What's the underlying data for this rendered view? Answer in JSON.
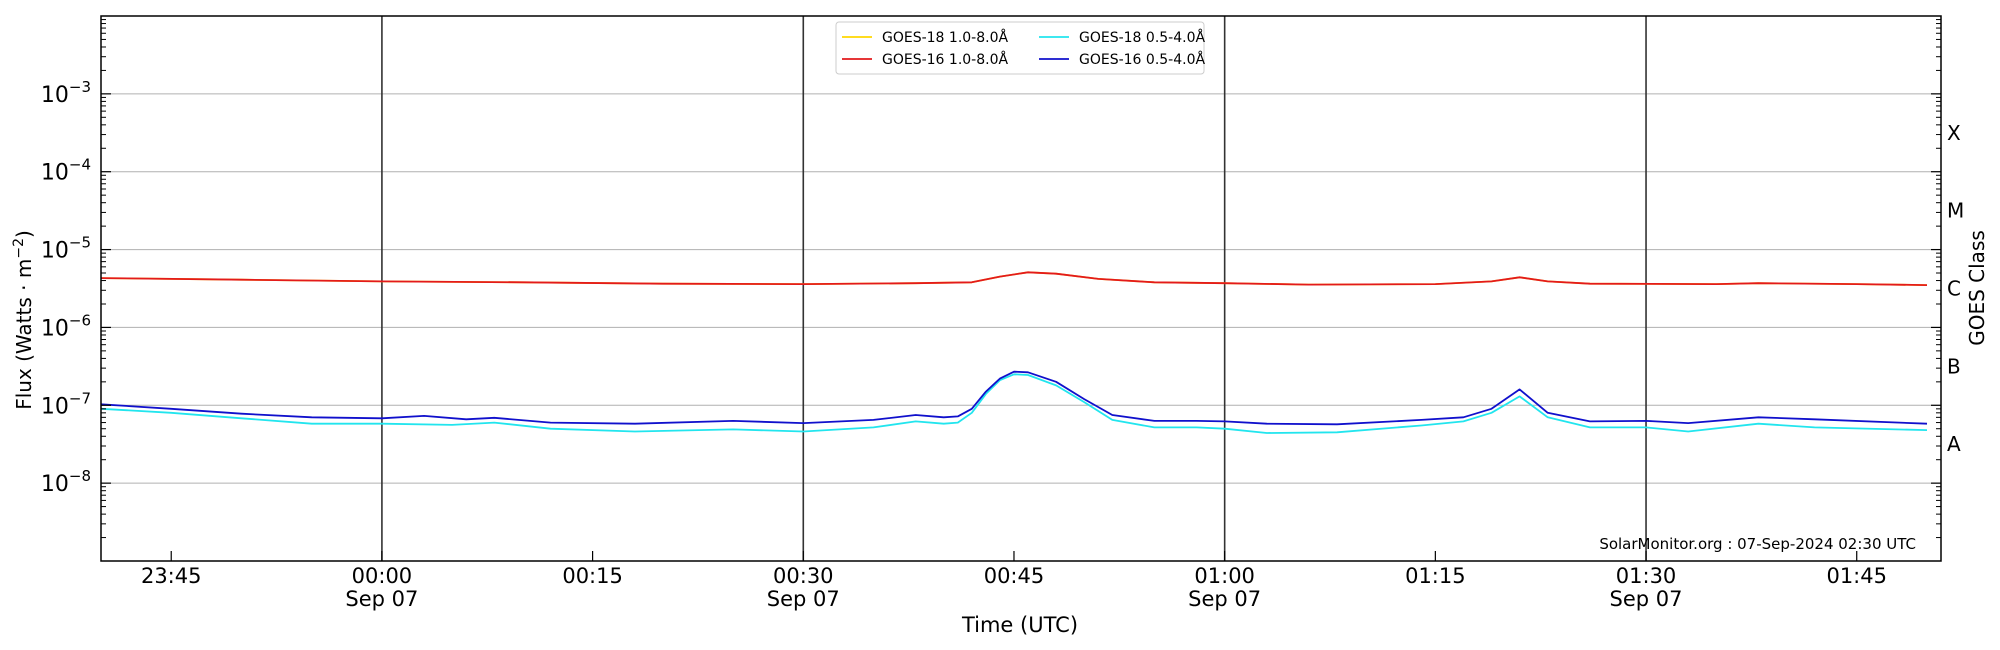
{
  "chart_data": {
    "type": "line",
    "xlabel": "Time (UTC)",
    "ylabel": "Flux (Watts · m",
    "ylabel_sup": "−2",
    "ylabel_close": ")",
    "y2label": "GOES Class",
    "yscale": "log",
    "ylim": [
      1e-09,
      0.01
    ],
    "xlim": [
      "2024-09-06T23:40",
      "2024-09-07T01:51"
    ],
    "grid": "horizontal",
    "legend_placement": "top-center",
    "annotation": "SolarMonitor.org : 07-Sep-2024 02:30 UTC",
    "y_ticks": [
      {
        "value": 1e-08,
        "label": "10",
        "exp": "−8"
      },
      {
        "value": 1e-07,
        "label": "10",
        "exp": "−7"
      },
      {
        "value": 1e-06,
        "label": "10",
        "exp": "−6"
      },
      {
        "value": 1e-05,
        "label": "10",
        "exp": "−5"
      },
      {
        "value": 0.0001,
        "label": "10",
        "exp": "−4"
      },
      {
        "value": 0.001,
        "label": "10",
        "exp": "−3"
      }
    ],
    "x_ticks": [
      {
        "time": "2024-09-06T23:45",
        "label": "23:45",
        "date": ""
      },
      {
        "time": "2024-09-07T00:00",
        "label": "00:00",
        "date": "Sep 07"
      },
      {
        "time": "2024-09-07T00:15",
        "label": "00:15",
        "date": ""
      },
      {
        "time": "2024-09-07T00:30",
        "label": "00:30",
        "date": "Sep 07"
      },
      {
        "time": "2024-09-07T00:45",
        "label": "00:45",
        "date": ""
      },
      {
        "time": "2024-09-07T01:00",
        "label": "01:00",
        "date": "Sep 07"
      },
      {
        "time": "2024-09-07T01:15",
        "label": "01:15",
        "date": ""
      },
      {
        "time": "2024-09-07T01:30",
        "label": "01:30",
        "date": "Sep 07"
      },
      {
        "time": "2024-09-07T01:45",
        "label": "01:45",
        "date": ""
      }
    ],
    "vlines": [
      "2024-09-07T00:00",
      "2024-09-07T00:30",
      "2024-09-07T01:00",
      "2024-09-07T01:30"
    ],
    "goes_classes": [
      {
        "label": "A",
        "value": 3.16e-08
      },
      {
        "label": "B",
        "value": 3.16e-07
      },
      {
        "label": "C",
        "value": 3.16e-06
      },
      {
        "label": "M",
        "value": 3.16e-05
      },
      {
        "label": "X",
        "value": 0.000316
      }
    ],
    "series": [
      {
        "name": "GOES-18 1.0-8.0Å",
        "color": "#ffd700",
        "points": [
          [
            "2024-09-06T23:40",
            4.3e-06
          ],
          [
            "2024-09-06T23:50",
            4.1e-06
          ],
          [
            "2024-09-07T00:00",
            3.9e-06
          ],
          [
            "2024-09-07T00:10",
            3.8e-06
          ],
          [
            "2024-09-07T00:20",
            3.65e-06
          ],
          [
            "2024-09-07T00:30",
            3.6e-06
          ],
          [
            "2024-09-07T00:38",
            3.7e-06
          ],
          [
            "2024-09-07T00:42",
            3.8e-06
          ],
          [
            "2024-09-07T00:44",
            4.5e-06
          ],
          [
            "2024-09-07T00:46",
            5.1e-06
          ],
          [
            "2024-09-07T00:48",
            4.9e-06
          ],
          [
            "2024-09-07T00:51",
            4.2e-06
          ],
          [
            "2024-09-07T00:55",
            3.8e-06
          ],
          [
            "2024-09-07T01:00",
            3.7e-06
          ],
          [
            "2024-09-07T01:06",
            3.55e-06
          ],
          [
            "2024-09-07T01:15",
            3.6e-06
          ],
          [
            "2024-09-07T01:19",
            3.9e-06
          ],
          [
            "2024-09-07T01:21",
            4.4e-06
          ],
          [
            "2024-09-07T01:23",
            3.9e-06
          ],
          [
            "2024-09-07T01:26",
            3.65e-06
          ],
          [
            "2024-09-07T01:35",
            3.6e-06
          ],
          [
            "2024-09-07T01:38",
            3.7e-06
          ],
          [
            "2024-09-07T01:45",
            3.6e-06
          ],
          [
            "2024-09-07T01:50",
            3.5e-06
          ]
        ]
      },
      {
        "name": "GOES-16 1.0-8.0Å",
        "color": "#e31a1c",
        "points": [
          [
            "2024-09-06T23:40",
            4.3e-06
          ],
          [
            "2024-09-06T23:50",
            4.1e-06
          ],
          [
            "2024-09-07T00:00",
            3.9e-06
          ],
          [
            "2024-09-07T00:10",
            3.8e-06
          ],
          [
            "2024-09-07T00:20",
            3.65e-06
          ],
          [
            "2024-09-07T00:30",
            3.6e-06
          ],
          [
            "2024-09-07T00:38",
            3.7e-06
          ],
          [
            "2024-09-07T00:42",
            3.8e-06
          ],
          [
            "2024-09-07T00:44",
            4.5e-06
          ],
          [
            "2024-09-07T00:46",
            5.1e-06
          ],
          [
            "2024-09-07T00:48",
            4.9e-06
          ],
          [
            "2024-09-07T00:51",
            4.2e-06
          ],
          [
            "2024-09-07T00:55",
            3.8e-06
          ],
          [
            "2024-09-07T01:00",
            3.7e-06
          ],
          [
            "2024-09-07T01:06",
            3.55e-06
          ],
          [
            "2024-09-07T01:15",
            3.6e-06
          ],
          [
            "2024-09-07T01:19",
            3.9e-06
          ],
          [
            "2024-09-07T01:21",
            4.4e-06
          ],
          [
            "2024-09-07T01:23",
            3.9e-06
          ],
          [
            "2024-09-07T01:26",
            3.65e-06
          ],
          [
            "2024-09-07T01:35",
            3.6e-06
          ],
          [
            "2024-09-07T01:38",
            3.7e-06
          ],
          [
            "2024-09-07T01:45",
            3.6e-06
          ],
          [
            "2024-09-07T01:50",
            3.5e-06
          ]
        ]
      },
      {
        "name": "GOES-18 0.5-4.0Å",
        "color": "#22e5ee",
        "points": [
          [
            "2024-09-06T23:40",
            9e-08
          ],
          [
            "2024-09-06T23:45",
            8e-08
          ],
          [
            "2024-09-06T23:50",
            6.8e-08
          ],
          [
            "2024-09-06T23:55",
            5.8e-08
          ],
          [
            "2024-09-07T00:00",
            5.8e-08
          ],
          [
            "2024-09-07T00:05",
            5.6e-08
          ],
          [
            "2024-09-07T00:08",
            6e-08
          ],
          [
            "2024-09-07T00:12",
            5e-08
          ],
          [
            "2024-09-07T00:18",
            4.6e-08
          ],
          [
            "2024-09-07T00:25",
            4.9e-08
          ],
          [
            "2024-09-07T00:30",
            4.6e-08
          ],
          [
            "2024-09-07T00:35",
            5.2e-08
          ],
          [
            "2024-09-07T00:38",
            6.2e-08
          ],
          [
            "2024-09-07T00:40",
            5.8e-08
          ],
          [
            "2024-09-07T00:41",
            6e-08
          ],
          [
            "2024-09-07T00:42",
            8e-08
          ],
          [
            "2024-09-07T00:43",
            1.4e-07
          ],
          [
            "2024-09-07T00:44",
            2.1e-07
          ],
          [
            "2024-09-07T00:45",
            2.5e-07
          ],
          [
            "2024-09-07T00:46",
            2.45e-07
          ],
          [
            "2024-09-07T00:48",
            1.8e-07
          ],
          [
            "2024-09-07T00:50",
            1.1e-07
          ],
          [
            "2024-09-07T00:52",
            6.5e-08
          ],
          [
            "2024-09-07T00:55",
            5.2e-08
          ],
          [
            "2024-09-07T00:58",
            5.2e-08
          ],
          [
            "2024-09-07T01:00",
            5e-08
          ],
          [
            "2024-09-07T01:03",
            4.4e-08
          ],
          [
            "2024-09-07T01:08",
            4.5e-08
          ],
          [
            "2024-09-07T01:14",
            5.5e-08
          ],
          [
            "2024-09-07T01:17",
            6.2e-08
          ],
          [
            "2024-09-07T01:19",
            8e-08
          ],
          [
            "2024-09-07T01:21",
            1.3e-07
          ],
          [
            "2024-09-07T01:23",
            7e-08
          ],
          [
            "2024-09-07T01:26",
            5.2e-08
          ],
          [
            "2024-09-07T01:30",
            5.2e-08
          ],
          [
            "2024-09-07T01:33",
            4.6e-08
          ],
          [
            "2024-09-07T01:38",
            5.8e-08
          ],
          [
            "2024-09-07T01:42",
            5.2e-08
          ],
          [
            "2024-09-07T01:50",
            4.8e-08
          ]
        ]
      },
      {
        "name": "GOES-16 0.5-4.0Å",
        "color": "#1010cc",
        "points": [
          [
            "2024-09-06T23:40",
            1.03e-07
          ],
          [
            "2024-09-06T23:45",
            9e-08
          ],
          [
            "2024-09-06T23:50",
            7.8e-08
          ],
          [
            "2024-09-06T23:55",
            7e-08
          ],
          [
            "2024-09-07T00:00",
            6.8e-08
          ],
          [
            "2024-09-07T00:03",
            7.3e-08
          ],
          [
            "2024-09-07T00:06",
            6.6e-08
          ],
          [
            "2024-09-07T00:08",
            6.9e-08
          ],
          [
            "2024-09-07T00:12",
            6e-08
          ],
          [
            "2024-09-07T00:18",
            5.8e-08
          ],
          [
            "2024-09-07T00:25",
            6.3e-08
          ],
          [
            "2024-09-07T00:30",
            5.9e-08
          ],
          [
            "2024-09-07T00:35",
            6.5e-08
          ],
          [
            "2024-09-07T00:38",
            7.5e-08
          ],
          [
            "2024-09-07T00:40",
            7e-08
          ],
          [
            "2024-09-07T00:41",
            7.2e-08
          ],
          [
            "2024-09-07T00:42",
            9e-08
          ],
          [
            "2024-09-07T00:43",
            1.5e-07
          ],
          [
            "2024-09-07T00:44",
            2.2e-07
          ],
          [
            "2024-09-07T00:45",
            2.7e-07
          ],
          [
            "2024-09-07T00:46",
            2.65e-07
          ],
          [
            "2024-09-07T00:48",
            2e-07
          ],
          [
            "2024-09-07T00:50",
            1.2e-07
          ],
          [
            "2024-09-07T00:52",
            7.5e-08
          ],
          [
            "2024-09-07T00:55",
            6.3e-08
          ],
          [
            "2024-09-07T00:58",
            6.3e-08
          ],
          [
            "2024-09-07T01:00",
            6.2e-08
          ],
          [
            "2024-09-07T01:03",
            5.8e-08
          ],
          [
            "2024-09-07T01:08",
            5.7e-08
          ],
          [
            "2024-09-07T01:14",
            6.5e-08
          ],
          [
            "2024-09-07T01:17",
            7e-08
          ],
          [
            "2024-09-07T01:19",
            9e-08
          ],
          [
            "2024-09-07T01:21",
            1.6e-07
          ],
          [
            "2024-09-07T01:23",
            8e-08
          ],
          [
            "2024-09-07T01:26",
            6.2e-08
          ],
          [
            "2024-09-07T01:30",
            6.3e-08
          ],
          [
            "2024-09-07T01:33",
            5.9e-08
          ],
          [
            "2024-09-07T01:38",
            7e-08
          ],
          [
            "2024-09-07T01:42",
            6.6e-08
          ],
          [
            "2024-09-07T01:50",
            5.8e-08
          ]
        ]
      }
    ]
  }
}
